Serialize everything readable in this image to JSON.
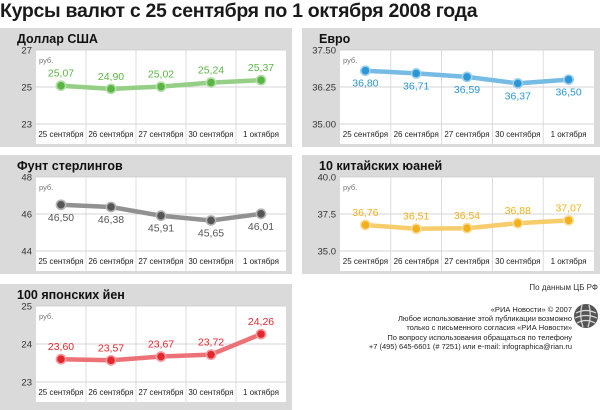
{
  "title": "Курсы валют с 25 сентября по 1 октября 2008 года",
  "source_note": "По данным ЦБ РФ",
  "credits": [
    "«РИА Новости» © 2007",
    "Любое использование этой публикации возможно",
    "только с письменного согласия «РИА Новости»",
    "По вопросу использования обращаться по телефону",
    "+7 (495) 645-6601 (# 7251) или e-mail: infographica@rian.ru"
  ],
  "logo_icon": "ria-novosti-globe-icon",
  "colors": {
    "panel_bg": "#dadada",
    "plot_bg": "#ffffff",
    "grid": "#c8c8c8",
    "usd": "#5bb544",
    "eur": "#2b97d5",
    "gbp": "#565656",
    "cny": "#f2b11b",
    "jpy": "#e4262e"
  },
  "chart_data": [
    {
      "type": "line",
      "title": "Доллар США",
      "unit": "руб.",
      "color_key": "usd",
      "categories": [
        "25 сентября",
        "26 сентября",
        "27 сентября",
        "30 сентября",
        "1 октября"
      ],
      "values": [
        25.07,
        24.9,
        25.02,
        25.24,
        25.37
      ],
      "value_labels": [
        "25,07",
        "24,90",
        "25,02",
        "25,24",
        "25,37"
      ],
      "yticks": [
        "27",
        "25",
        "23"
      ],
      "ylim": [
        23,
        27
      ],
      "grid": true
    },
    {
      "type": "line",
      "title": "Евро",
      "unit": "руб.",
      "color_key": "eur",
      "categories": [
        "25 сентября",
        "26 сентября",
        "27 сентября",
        "30 сентября",
        "1 октября"
      ],
      "values": [
        36.8,
        36.71,
        36.59,
        36.37,
        36.5
      ],
      "value_labels": [
        "36,80",
        "36,71",
        "36,59",
        "36,37",
        "36,50"
      ],
      "yticks": [
        "37.50",
        "36.25",
        "35.00"
      ],
      "ylim": [
        35.0,
        37.5
      ],
      "grid": true
    },
    {
      "type": "line",
      "title": "Фунт стерлингов",
      "unit": "руб.",
      "color_key": "gbp",
      "categories": [
        "25 сентября",
        "26 сентября",
        "27 сентября",
        "30 сентября",
        "1 октября"
      ],
      "values": [
        46.5,
        46.38,
        45.91,
        45.65,
        46.01
      ],
      "value_labels": [
        "46,50",
        "46,38",
        "45,91",
        "45,65",
        "46,01"
      ],
      "yticks": [
        "48",
        "46",
        "44"
      ],
      "ylim": [
        44,
        48
      ],
      "grid": true
    },
    {
      "type": "line",
      "title": "10 китайских юаней",
      "unit": "руб.",
      "color_key": "cny",
      "categories": [
        "25 сентября",
        "26 сентября",
        "27 сентября",
        "30 сентября",
        "1 октября"
      ],
      "values": [
        36.76,
        36.51,
        36.54,
        36.88,
        37.07
      ],
      "value_labels": [
        "36,76",
        "36,51",
        "36,54",
        "36,88",
        "37,07"
      ],
      "yticks": [
        "40.0",
        "37.5",
        "35.0"
      ],
      "ylim": [
        35.0,
        40.0
      ],
      "grid": true
    },
    {
      "type": "line",
      "title": "100 японских йен",
      "unit": "руб.",
      "color_key": "jpy",
      "categories": [
        "25 сентября",
        "26 сентября",
        "27 сентября",
        "30 сентября",
        "1 октября"
      ],
      "values": [
        23.6,
        23.57,
        23.67,
        23.72,
        24.26
      ],
      "value_labels": [
        "23,60",
        "23,57",
        "23,67",
        "23,72",
        "24,26"
      ],
      "yticks": [
        "25",
        "24",
        "23"
      ],
      "ylim": [
        23,
        25
      ],
      "grid": true
    }
  ]
}
